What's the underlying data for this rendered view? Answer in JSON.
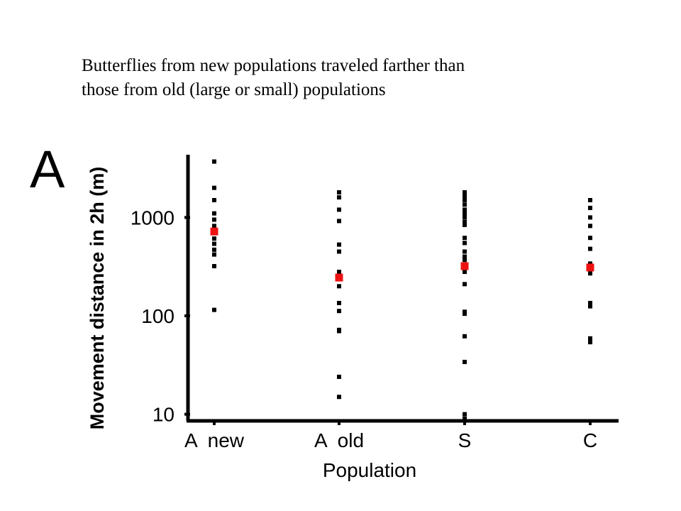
{
  "caption": {
    "line1": "Butterflies from new populations traveled farther than",
    "line2": "those from old (large or small) populations"
  },
  "chart_data": {
    "type": "scatter",
    "panel_label": "A",
    "xlabel": "Population",
    "ylabel": "Movement distance in 2h (m)",
    "yscale": "log",
    "ylim": [
      9,
      4200
    ],
    "yticks": [
      {
        "value": 10,
        "label": "10"
      },
      {
        "value": 100,
        "label": "100"
      },
      {
        "value": 1000,
        "label": "1000"
      }
    ],
    "categories": [
      "A  new",
      "A  old",
      "S",
      "C"
    ],
    "colors": {
      "points": "#000000",
      "mean": "#ee1111",
      "axis": "#000000"
    },
    "series": [
      {
        "name": "",
        "role": "individual",
        "values": [
          [
            3700,
            2000,
            1500,
            1100,
            950,
            820,
            720,
            610,
            540,
            470,
            420,
            320,
            115
          ],
          [
            1800,
            1600,
            1200,
            920,
            530,
            450,
            280,
            200,
            135,
            112,
            72,
            70,
            24,
            15
          ],
          [
            1800,
            1650,
            1500,
            1350,
            1200,
            1100,
            1000,
            900,
            840,
            620,
            550,
            450,
            400,
            370,
            280,
            210,
            110,
            105,
            62,
            34,
            10,
            9
          ],
          [
            1500,
            1250,
            1000,
            820,
            620,
            480,
            340,
            270,
            135,
            125,
            59,
            54
          ]
        ]
      },
      {
        "name": "",
        "role": "mean",
        "values": [
          720,
          245,
          320,
          310
        ]
      }
    ]
  }
}
